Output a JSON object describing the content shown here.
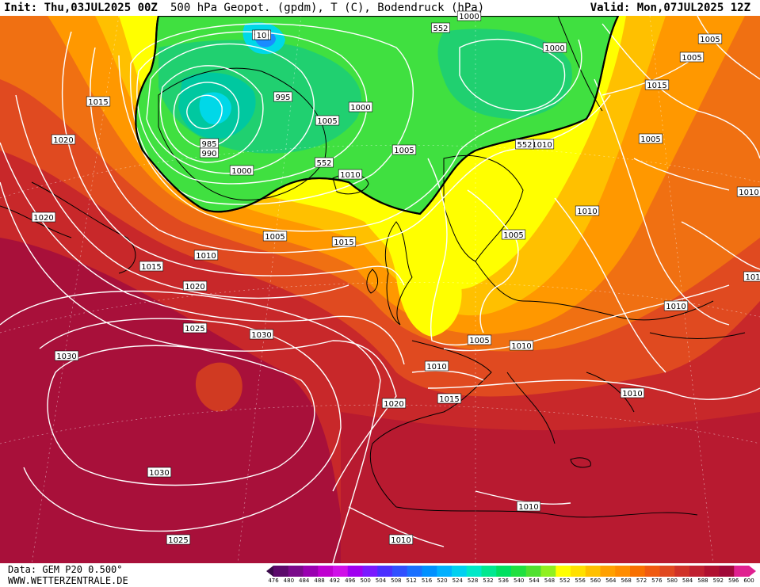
{
  "header": {
    "init": "Init: Thu,03JUL2025 00Z",
    "title": "500 hPa Geopot. (gpdm), T (C), Bodendruck (hPa)",
    "valid": "Valid: Mon,07JUL2025 12Z"
  },
  "footer": {
    "data_source": "Data: GEM P20 0.500°",
    "website": "WWW.WETTERZENTRALE.DE"
  },
  "colorbar": {
    "ticks": [
      "476",
      "480",
      "484",
      "488",
      "492",
      "496",
      "500",
      "504",
      "508",
      "512",
      "516",
      "520",
      "524",
      "528",
      "532",
      "536",
      "540",
      "544",
      "548",
      "552",
      "556",
      "560",
      "564",
      "568",
      "572",
      "576",
      "580",
      "584",
      "588",
      "592",
      "596",
      "600"
    ],
    "colors": [
      "#5c0a6b",
      "#7a0a8a",
      "#9a00b0",
      "#c000d0",
      "#d010e8",
      "#a000f0",
      "#7a1aff",
      "#4a30ff",
      "#3050ff",
      "#1a70ff",
      "#0090ff",
      "#00b0ff",
      "#00d0f0",
      "#00e8c8",
      "#00e890",
      "#00e060",
      "#20e040",
      "#50e030",
      "#90f020",
      "#ffff00",
      "#ffe000",
      "#ffc000",
      "#ffa000",
      "#ff8c00",
      "#f87000",
      "#f05a10",
      "#e04820",
      "#d03228",
      "#c02030",
      "#b01030",
      "#a00838",
      "#e02090"
    ]
  },
  "map_labels": {
    "isobars": [
      {
        "text": "990",
        "name": "isobar-label-990-north"
      },
      {
        "text": "552",
        "name": "geopot-label-552-north"
      },
      {
        "text": "1000",
        "name": "isobar-label-1000-top"
      },
      {
        "text": "1005",
        "name": "isobar-label-1005-ne1"
      },
      {
        "text": "1005",
        "name": "isobar-label-1005-ne2"
      },
      {
        "text": "1000",
        "name": "isobar-label-1000-nordic"
      },
      {
        "text": "1015",
        "name": "isobar-label-1015-west"
      },
      {
        "text": "1020",
        "name": "isobar-label-1020-west"
      },
      {
        "text": "985",
        "name": "isobar-label-985"
      },
      {
        "text": "990",
        "name": "isobar-label-990-low"
      },
      {
        "text": "995",
        "name": "isobar-label-995"
      },
      {
        "text": "1000",
        "name": "isobar-label-1000-iceland"
      },
      {
        "text": "1005",
        "name": "isobar-label-1005-iceland"
      },
      {
        "text": "1000",
        "name": "isobar-label-1000-greenland"
      },
      {
        "text": "552",
        "name": "geopot-label-552-greenland"
      },
      {
        "text": "1010",
        "name": "isobar-label-1010-north-atlantic"
      },
      {
        "text": "1005",
        "name": "isobar-label-1005-norway"
      },
      {
        "text": "1010",
        "name": "isobar-label-1010-nordic"
      },
      {
        "text": "552",
        "name": "geopot-label-552-east"
      },
      {
        "text": "1005",
        "name": "isobar-label-1005-east"
      },
      {
        "text": "1015",
        "name": "isobar-label-1015-east"
      },
      {
        "text": "1010",
        "name": "isobar-label-1010-baltic"
      },
      {
        "text": "1005",
        "name": "isobar-label-1005-southern-scandinavia"
      },
      {
        "text": "1005",
        "name": "isobar-label-1005-atlantic"
      },
      {
        "text": "1015",
        "name": "isobar-label-1015-atlantic"
      },
      {
        "text": "1010",
        "name": "isobar-label-1010-atlantic"
      },
      {
        "text": "1015",
        "name": "isobar-label-1015-canada"
      },
      {
        "text": "1020",
        "name": "isobar-label-1020-canada"
      },
      {
        "text": "1020",
        "name": "isobar-label-1020-atlantic"
      },
      {
        "text": "1025",
        "name": "isobar-label-1025-atlantic"
      },
      {
        "text": "1030",
        "name": "isobar-label-1030-azores"
      },
      {
        "text": "1030",
        "name": "isobar-label-1030-west"
      },
      {
        "text": "1030",
        "name": "isobar-label-1030-south"
      },
      {
        "text": "1025",
        "name": "isobar-label-1025-south"
      },
      {
        "text": "1020",
        "name": "isobar-label-1020-iberia"
      },
      {
        "text": "1015",
        "name": "isobar-label-1015-biscay"
      },
      {
        "text": "1010",
        "name": "isobar-label-1010-france"
      },
      {
        "text": "1005",
        "name": "isobar-label-1005-germany"
      },
      {
        "text": "1010",
        "name": "isobar-label-1010-alps"
      },
      {
        "text": "1010",
        "name": "isobar-label-1010-balkans"
      },
      {
        "text": "1010",
        "name": "isobar-label-1010-black-sea"
      },
      {
        "text": "1010",
        "name": "isobar-label-1010-greece"
      },
      {
        "text": "1010",
        "name": "isobar-label-1010-north-africa"
      },
      {
        "text": "1010",
        "name": "isobar-label-1010-sahara"
      },
      {
        "text": "101",
        "name": "isobar-label-101-edge1"
      },
      {
        "text": "10",
        "name": "isobar-label-10-edge2"
      }
    ]
  }
}
